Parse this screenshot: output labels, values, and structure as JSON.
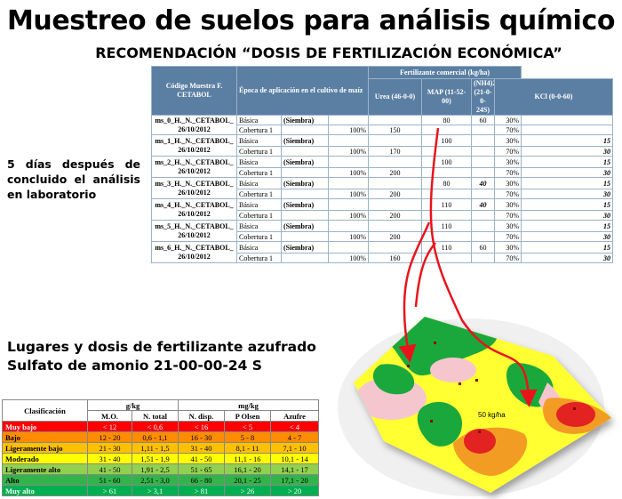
{
  "title": "Muestreo de suelos para análisis químico",
  "subtitle": "RECOMENDACIÓN “DOSIS DE FERTILIZACIÓN ECONÓMICA”",
  "side_note": "5 días después de concluido el análisis en laboratorio",
  "section_title_line1": "Lugares y dosis de fertilizante azufrado",
  "section_title_line2": "Sulfato de amonio 21-00-00-24 S",
  "rec_table": {
    "h_code": "Código Muestra F. CETABOL",
    "h_epoca": "Época de aplicación en el cultivo de maíz",
    "h_fert": "Fertilizante comercial (kg/ha)",
    "h_urea": "Urea (46-0-0)",
    "h_map": "MAP (11-52-00)",
    "h_nh4": "(NH4)2SO4 (21-0-0-24S)",
    "h_kcl": "KCl (0-0-60)",
    "rows": [
      {
        "code1": "ms_0_H._N._CETABOL_",
        "code2": "26/10/2012",
        "map": "80",
        "nh4": "60",
        "nh4_style": "normal",
        "kcl_kv_a": "",
        "kcl_kv_b": "",
        "urea": "150"
      },
      {
        "code1": "ms_1_H._N._CETABOL_",
        "code2": "26/10/2012",
        "map": "100",
        "nh4": "",
        "nh4_style": "normal",
        "kcl_kv_a": "15",
        "kcl_kv_b": "30",
        "urea": "170"
      },
      {
        "code1": "ms_2_H._N._CETABOL_",
        "code2": "26/10/2012",
        "map": "100",
        "nh4": "",
        "nh4_style": "normal",
        "kcl_kv_a": "15",
        "kcl_kv_b": "30",
        "urea": "200"
      },
      {
        "code1": "ms_3_H._N._CETABOL_",
        "code2": "26/10/2012",
        "map": "80",
        "nh4": "40",
        "nh4_style": "bold",
        "kcl_kv_a": "15",
        "kcl_kv_b": "30",
        "urea": "200"
      },
      {
        "code1": "ms_4_H._N._CETABOL_",
        "code2": "26/10/2012",
        "map": "110",
        "nh4": "40",
        "nh4_style": "bold",
        "kcl_kv_a": "15",
        "kcl_kv_b": "30",
        "urea": "200"
      },
      {
        "code1": "ms_5_H._N._CETABOL_",
        "code2": "26/10/2012",
        "map": "110",
        "nh4": "",
        "nh4_style": "normal",
        "kcl_kv_a": "15",
        "kcl_kv_b": "30",
        "urea": "200"
      },
      {
        "code1": "ms_6_H._N._CETABOL_",
        "code2": "26/10/2012",
        "map": "110",
        "nh4": "60",
        "nh4_style": "normal",
        "kcl_kv_a": "15",
        "kcl_kv_b": "30",
        "urea": "160"
      }
    ],
    "basica": "Básica",
    "siembra": "(Siembra)",
    "cobertura": "Cobertura 1",
    "p100": "100%",
    "p30": "30%",
    "p70": "70%"
  },
  "cls_table": {
    "h_clas": "Clasificación",
    "h_gkg": "g/kg",
    "h_mgkg": "mg/kg",
    "h_mo": "M.O.",
    "h_nt": "N. total",
    "h_nd": "N. disp.",
    "h_po": "P Olsen",
    "h_az": "Azufre",
    "rows": [
      {
        "label": "Muy bajo",
        "mo": "< 12",
        "nt": "< 0,6",
        "nd": "< 16",
        "po": "< 5",
        "az": "< 4"
      },
      {
        "label": "Bajo",
        "mo": "12 - 20",
        "nt": "0,6 - 1,1",
        "nd": "16 - 30",
        "po": "5 - 8",
        "az": "4 - 7"
      },
      {
        "label": "Ligeramente bajo",
        "mo": "21 - 30",
        "nt": "1,11 - 1,5",
        "nd": "31 - 40",
        "po": "8,1 - 11",
        "az": "7,1 - 10"
      },
      {
        "label": "Moderado",
        "mo": "31 - 40",
        "nt": "1,51 - 1,9",
        "nd": "41 - 50",
        "po": "11,1 - 16",
        "az": "10,1 - 14"
      },
      {
        "label": "Ligeramente alto",
        "mo": "41 - 50",
        "nt": "1,91 - 2,5",
        "nd": "51 - 65",
        "po": "16,1 - 20",
        "az": "14,1 - 17"
      },
      {
        "label": "Alto",
        "mo": "51 - 60",
        "nt": "2,51 - 3,0",
        "nd": "66 - 80",
        "po": "20,1 - 25",
        "az": "17,1 - 20"
      },
      {
        "label": "Muy alto",
        "mo": "> 61",
        "nt": "> 3,1",
        "nd": "> 81",
        "po": "> 26",
        "az": "> 20"
      }
    ]
  },
  "map_label": "50 kg/ha",
  "colors": {
    "header_blue": "#5b7fa3",
    "arrow_red": "#e8141c",
    "map_green": "#1aa83c",
    "map_yellow": "#ffff33",
    "map_orange": "#f39c24",
    "map_red": "#e32222",
    "map_pink": "#f6c6cf"
  }
}
